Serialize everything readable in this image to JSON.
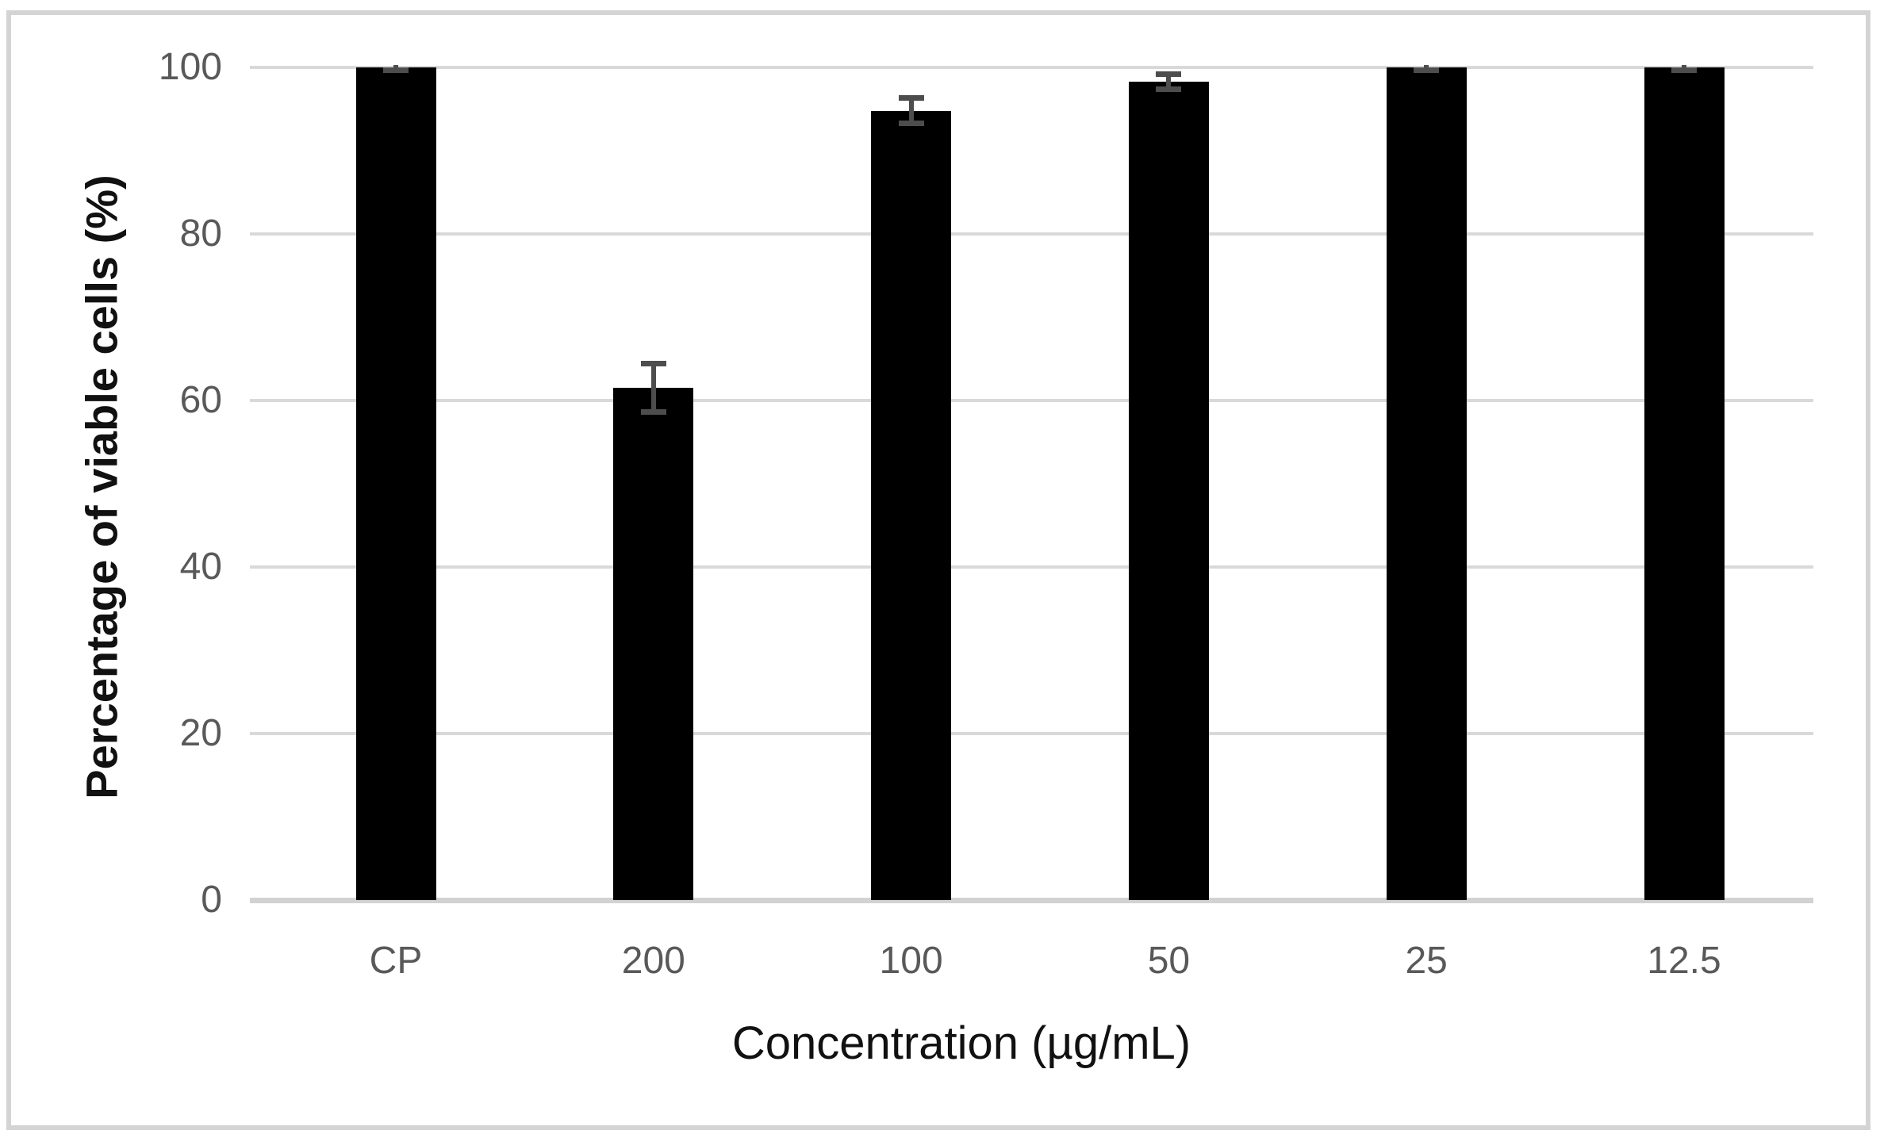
{
  "chart_data": {
    "type": "bar",
    "title": "",
    "xlabel": "Concentration (µg/mL)",
    "ylabel": "Percentage of viable cells (%)",
    "categories": [
      "CP",
      "200",
      "100",
      "50",
      "25",
      "12.5"
    ],
    "values": [
      100,
      61.5,
      94.8,
      98.3,
      100,
      100
    ],
    "errors": [
      0.3,
      2.9,
      1.5,
      0.9,
      0.3,
      0.3
    ],
    "yticks": [
      0,
      20,
      40,
      60,
      80,
      100
    ],
    "ylim": [
      0,
      100
    ],
    "grid": "horizontal-only",
    "legend_position": "none",
    "colors": {
      "bar": "#000000",
      "error_bar": "#4d4d4d",
      "gridline": "#d9d9d9",
      "axis_line": "#d2d2d2",
      "tick_label": "#595959",
      "axis_title": "#111111",
      "frame_border": "#d4d4d4",
      "background": "#ffffff"
    }
  }
}
